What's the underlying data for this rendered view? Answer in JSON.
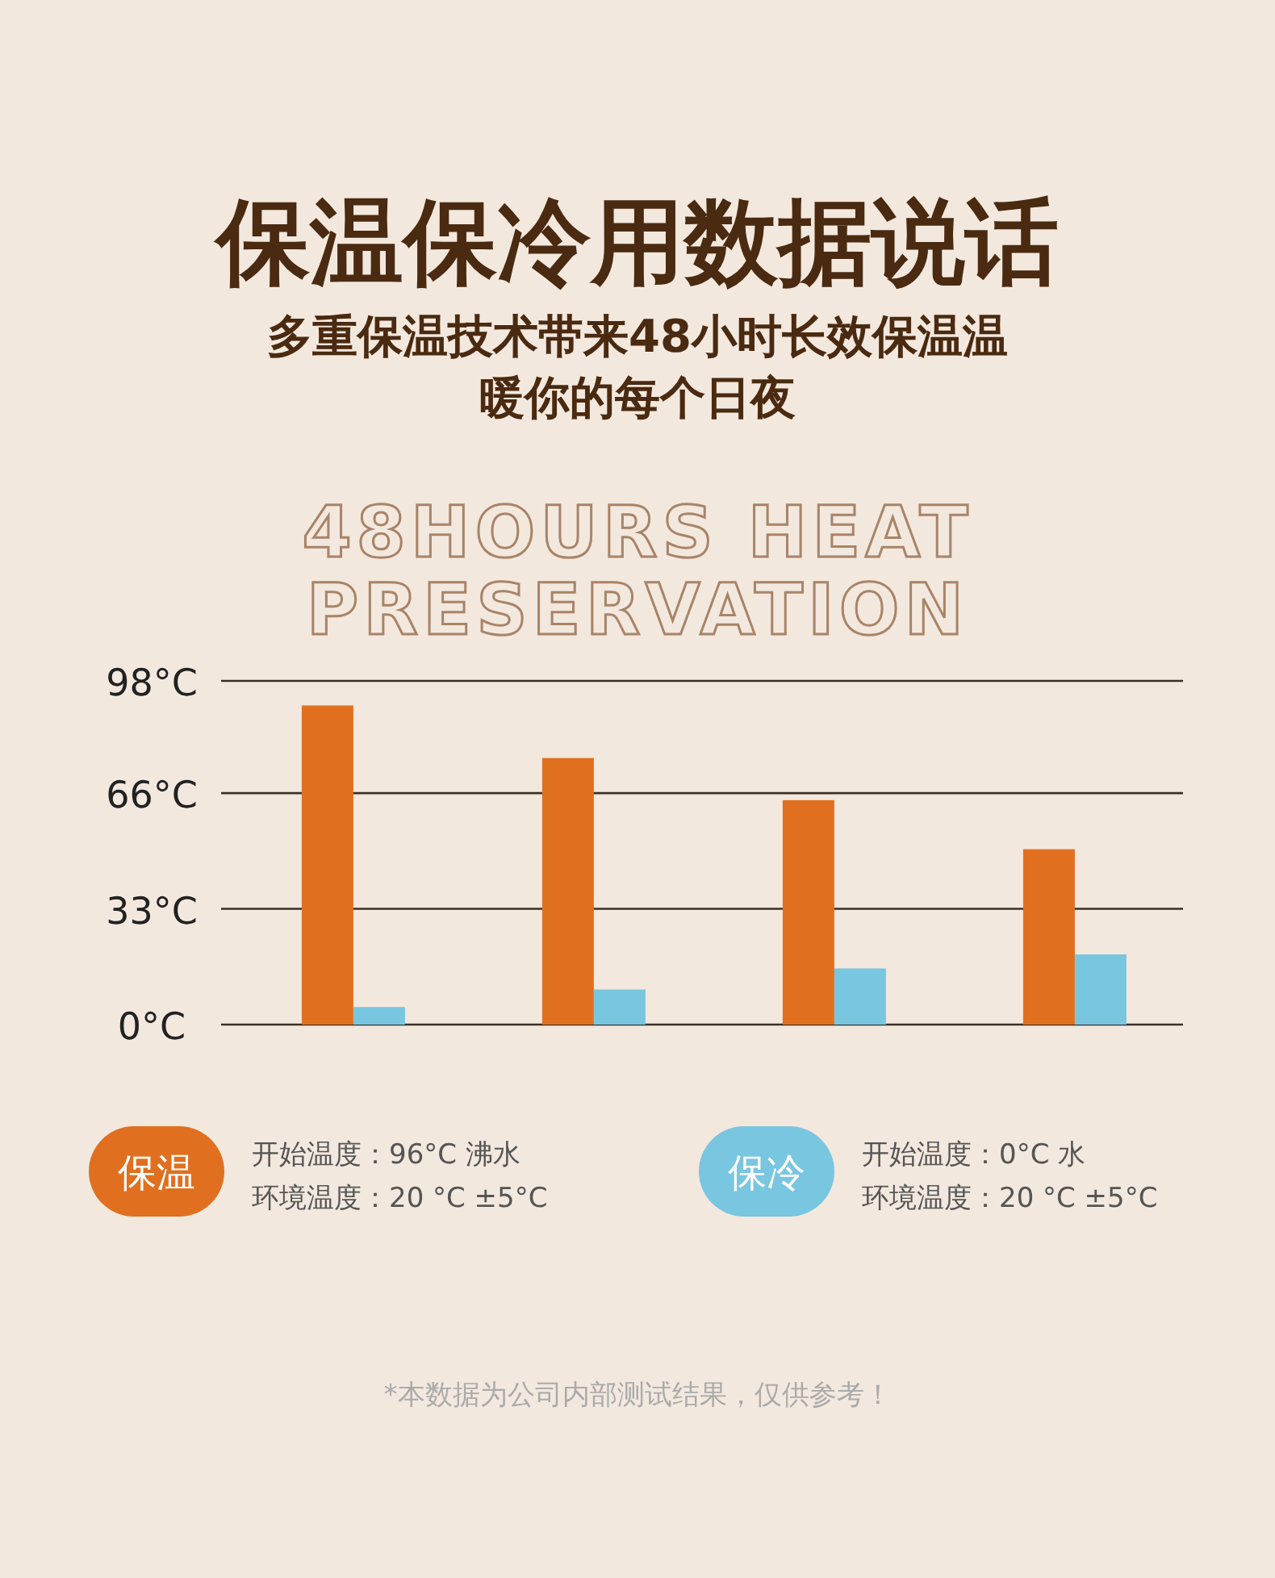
{
  "chart_data": {
    "type": "bar",
    "title": "保温保冷用数据说话",
    "subtitle": "多重保温技术带来48小时长效保温温暖你的每个日夜",
    "categories": [
      null,
      null,
      null,
      null
    ],
    "series": [
      {
        "name": "保温",
        "color": "#e07020",
        "values": [
          91,
          76,
          64,
          50
        ]
      },
      {
        "name": "保冷",
        "color": "#79c6e0",
        "values": [
          5,
          10,
          16,
          20
        ]
      }
    ],
    "ylim": [
      0,
      98
    ],
    "yticks": [
      {
        "value": 0,
        "label": "0°C"
      },
      {
        "value": 33,
        "label": "33°C"
      },
      {
        "value": 66,
        "label": "66°C"
      },
      {
        "value": 98,
        "label": "98°C"
      }
    ],
    "grid": "y",
    "legend": "bottom",
    "annotations": [
      "48HOURS HEAT\nPRESERVATION",
      "开始温度：96°C 沸水",
      "环境温度：20 °C ±5°C",
      "开始温度：0°C 水",
      "环境温度：20 °C ±5°C",
      "*本数据为公司内部测试结果，仅供参考！"
    ]
  }
}
